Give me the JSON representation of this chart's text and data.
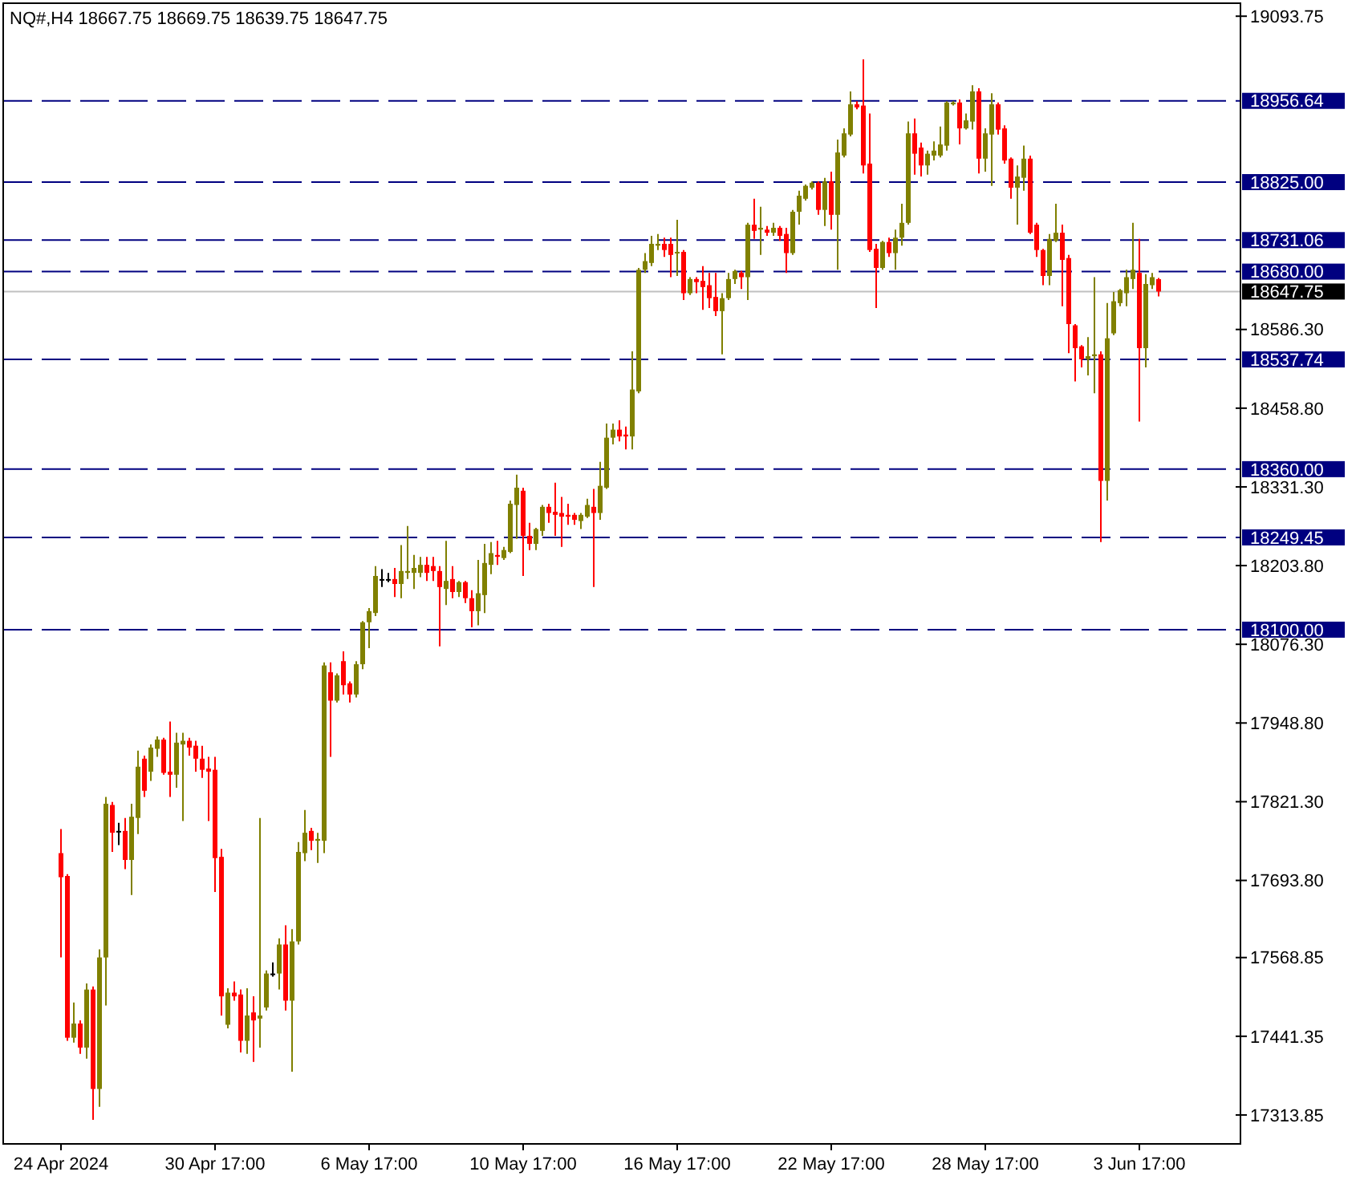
{
  "chart_data": {
    "type": "candlestick",
    "title": "NQ#,H4  18667.75 18669.75 18639.75 18647.75",
    "categories": [
      "24 Apr 2024",
      null,
      null,
      null,
      null,
      null,
      null,
      null,
      null,
      null,
      null,
      null,
      null,
      null,
      null,
      null,
      null,
      null,
      null,
      null,
      null,
      null,
      null,
      null,
      "30 Apr 17:00",
      null,
      null,
      null,
      null,
      null,
      null,
      null,
      null,
      null,
      null,
      null,
      null,
      null,
      null,
      null,
      null,
      null,
      null,
      null,
      null,
      null,
      null,
      null,
      "6 May 17:00",
      null,
      null,
      null,
      null,
      null,
      null,
      null,
      null,
      null,
      null,
      null,
      null,
      null,
      null,
      null,
      null,
      null,
      null,
      null,
      null,
      null,
      null,
      null,
      "10 May 17:00",
      null,
      null,
      null,
      null,
      null,
      null,
      null,
      null,
      null,
      null,
      null,
      null,
      null,
      null,
      null,
      null,
      null,
      null,
      null,
      null,
      null,
      null,
      null,
      "16 May 17:00",
      null,
      null,
      null,
      null,
      null,
      null,
      null,
      null,
      null,
      null,
      null,
      null,
      null,
      null,
      null,
      null,
      null,
      null,
      null,
      null,
      null,
      null,
      null,
      "22 May 17:00",
      null,
      null,
      null,
      null,
      null,
      null,
      null,
      null,
      null,
      null,
      null,
      null,
      null,
      null,
      null,
      null,
      null,
      null,
      null,
      null,
      null,
      null,
      null,
      "28 May 17:00",
      null,
      null,
      null,
      null,
      null,
      null,
      null,
      null,
      null,
      null,
      null,
      null,
      null,
      null,
      null,
      null,
      null,
      null,
      null,
      null,
      null,
      null,
      null,
      "3 Jun 17:00",
      null,
      null,
      null
    ],
    "ohlc": [
      [
        17738,
        17777,
        17569,
        17699
      ],
      [
        17701,
        17704,
        17434,
        17439
      ],
      [
        17439,
        17496,
        17431,
        17462
      ],
      [
        17462,
        17467,
        17413,
        17423
      ],
      [
        17423,
        17527,
        17405,
        17517
      ],
      [
        17517,
        17522,
        17306,
        17356
      ],
      [
        17356,
        17582,
        17327,
        17569
      ],
      [
        17569,
        17829,
        17491,
        17818
      ],
      [
        17816,
        17821,
        17740,
        17771
      ],
      [
        17774,
        17787,
        17751,
        17774
      ],
      [
        17774,
        17795,
        17712,
        17727
      ],
      [
        17727,
        17818,
        17670,
        17797
      ],
      [
        17795,
        17904,
        17769,
        17878
      ],
      [
        17891,
        17896,
        17829,
        17839
      ],
      [
        17870,
        17914,
        17855,
        17909
      ],
      [
        17907,
        17927,
        17894,
        17922
      ],
      [
        17922,
        17925,
        17865,
        17868
      ],
      [
        17870,
        17951,
        17829,
        17865
      ],
      [
        17865,
        17933,
        17844,
        17917
      ],
      [
        17914,
        17933,
        17790,
        17920
      ],
      [
        17920,
        17925,
        17896,
        17909
      ],
      [
        17912,
        17920,
        17870,
        17891
      ],
      [
        17891,
        17912,
        17860,
        17873
      ],
      [
        17875,
        17894,
        17790,
        17870
      ],
      [
        17873,
        17894,
        17675,
        17730
      ],
      [
        17732,
        17745,
        17475,
        17506
      ],
      [
        17460,
        17519,
        17454,
        17512
      ],
      [
        17512,
        17530,
        17499,
        17506
      ],
      [
        17509,
        17517,
        17415,
        17434
      ],
      [
        17434,
        17519,
        17413,
        17475
      ],
      [
        17480,
        17506,
        17400,
        17467
      ],
      [
        17470,
        17795,
        17423,
        17475
      ],
      [
        17488,
        17548,
        17483,
        17543
      ],
      [
        17543,
        17561,
        17538,
        17543
      ],
      [
        17543,
        17600,
        17517,
        17590
      ],
      [
        17590,
        17621,
        17483,
        17499
      ],
      [
        17499,
        17615,
        17384,
        17595
      ],
      [
        17595,
        17756,
        17590,
        17740
      ],
      [
        17738,
        17808,
        17725,
        17771
      ],
      [
        17774,
        17779,
        17743,
        17758
      ],
      [
        17758,
        17771,
        17722,
        17761
      ],
      [
        17758,
        18047,
        17738,
        18042
      ],
      [
        18031,
        18047,
        17894,
        17985
      ],
      [
        17985,
        18029,
        17982,
        18026
      ],
      [
        18049,
        18065,
        17995,
        18010
      ],
      [
        18013,
        18016,
        17982,
        17995
      ],
      [
        17995,
        18049,
        17990,
        18044
      ],
      [
        18044,
        18114,
        18036,
        18112
      ],
      [
        18112,
        18135,
        18070,
        18130
      ],
      [
        18127,
        18203,
        18122,
        18187
      ],
      [
        18182,
        18198,
        18169,
        18182
      ],
      [
        18182,
        18192,
        18177,
        18182
      ],
      [
        18182,
        18200,
        18153,
        18174
      ],
      [
        18174,
        18237,
        18151,
        18195
      ],
      [
        18192,
        18268,
        18182,
        18195
      ],
      [
        18192,
        18221,
        18166,
        18200
      ],
      [
        18192,
        18218,
        18185,
        18205
      ],
      [
        18205,
        18218,
        18179,
        18192
      ],
      [
        18203,
        18218,
        18179,
        18195
      ],
      [
        18195,
        18203,
        18073,
        18169
      ],
      [
        18166,
        18244,
        18140,
        18179
      ],
      [
        18182,
        18203,
        18151,
        18161
      ],
      [
        18161,
        18179,
        18153,
        18177
      ],
      [
        18177,
        18179,
        18143,
        18151
      ],
      [
        18151,
        18164,
        18104,
        18130
      ],
      [
        18130,
        18213,
        18107,
        18159
      ],
      [
        18156,
        18239,
        18127,
        18208
      ],
      [
        18205,
        18242,
        18190,
        18224
      ],
      [
        18221,
        18244,
        18205,
        18218
      ],
      [
        18216,
        18234,
        18213,
        18229
      ],
      [
        18226,
        18309,
        18224,
        18304
      ],
      [
        18302,
        18351,
        18247,
        18330
      ],
      [
        18325,
        18330,
        18187,
        18252
      ],
      [
        18252,
        18273,
        18229,
        18239
      ],
      [
        18239,
        18265,
        18229,
        18263
      ],
      [
        18260,
        18302,
        18252,
        18299
      ],
      [
        18299,
        18304,
        18273,
        18289
      ],
      [
        18291,
        18338,
        18252,
        18286
      ],
      [
        18289,
        18315,
        18234,
        18283
      ],
      [
        18286,
        18304,
        18270,
        18283
      ],
      [
        18286,
        18289,
        18270,
        18278
      ],
      [
        18276,
        18289,
        18263,
        18286
      ],
      [
        18283,
        18312,
        18281,
        18302
      ],
      [
        18299,
        18328,
        18169,
        18289
      ],
      [
        18289,
        18372,
        18278,
        18333
      ],
      [
        18330,
        18434,
        18328,
        18411
      ],
      [
        18411,
        18434,
        18400,
        18424
      ],
      [
        18424,
        18439,
        18405,
        18413
      ],
      [
        18416,
        18429,
        18392,
        18413
      ],
      [
        18413,
        18551,
        18392,
        18489
      ],
      [
        18486,
        18686,
        18483,
        18683
      ],
      [
        18683,
        18710,
        18678,
        18697
      ],
      [
        18694,
        18738,
        18689,
        18725
      ],
      [
        18722,
        18741,
        18715,
        18725
      ],
      [
        18725,
        18735,
        18704,
        18715
      ],
      [
        18725,
        18735,
        18671,
        18707
      ],
      [
        18710,
        18764,
        18673,
        18712
      ],
      [
        18712,
        18715,
        18634,
        18645
      ],
      [
        18645,
        18671,
        18642,
        18668
      ],
      [
        18668,
        18671,
        18645,
        18663
      ],
      [
        18665,
        18689,
        18618,
        18655
      ],
      [
        18658,
        18678,
        18621,
        18637
      ],
      [
        18639,
        18678,
        18608,
        18616
      ],
      [
        18616,
        18645,
        18546,
        18637
      ],
      [
        18637,
        18678,
        18634,
        18668
      ],
      [
        18668,
        18683,
        18660,
        18681
      ],
      [
        18678,
        18681,
        18652,
        18671
      ],
      [
        18671,
        18759,
        18634,
        18756
      ],
      [
        18756,
        18798,
        18733,
        18746
      ],
      [
        18748,
        18785,
        18707,
        18751
      ],
      [
        18748,
        18754,
        18738,
        18743
      ],
      [
        18743,
        18759,
        18738,
        18751
      ],
      [
        18751,
        18754,
        18730,
        18738
      ],
      [
        18741,
        18751,
        18678,
        18710
      ],
      [
        18710,
        18780,
        18707,
        18777
      ],
      [
        18777,
        18811,
        18756,
        18803
      ],
      [
        18798,
        18821,
        18795,
        18819
      ],
      [
        18816,
        18826,
        18813,
        18824
      ],
      [
        18824,
        18826,
        18772,
        18780
      ],
      [
        18780,
        18832,
        18754,
        18826
      ],
      [
        18826,
        18842,
        18748,
        18772
      ],
      [
        18772,
        18894,
        18683,
        18873
      ],
      [
        18868,
        18912,
        18865,
        18904
      ],
      [
        18902,
        18972,
        18899,
        18951
      ],
      [
        18951,
        18956,
        18943,
        18946
      ],
      [
        18949,
        19024,
        18839,
        18852
      ],
      [
        18855,
        18936,
        18712,
        18715
      ],
      [
        18717,
        18725,
        18621,
        18686
      ],
      [
        18686,
        18730,
        18683,
        18728
      ],
      [
        18728,
        18735,
        18704,
        18710
      ],
      [
        18710,
        18748,
        18683,
        18735
      ],
      [
        18735,
        18790,
        18722,
        18759
      ],
      [
        18759,
        18923,
        18756,
        18904
      ],
      [
        18904,
        18928,
        18837,
        18871
      ],
      [
        18881,
        18889,
        18834,
        18852
      ],
      [
        18852,
        18876,
        18837,
        18871
      ],
      [
        18868,
        18891,
        18860,
        18876
      ],
      [
        18868,
        18915,
        18865,
        18886
      ],
      [
        18884,
        18956,
        18876,
        18954
      ],
      [
        18951,
        18956,
        18949,
        18954
      ],
      [
        18954,
        18959,
        18886,
        18912
      ],
      [
        18912,
        18936,
        18910,
        18925
      ],
      [
        18923,
        18982,
        18910,
        18972
      ],
      [
        18972,
        18977,
        18839,
        18863
      ],
      [
        18863,
        18912,
        18842,
        18904
      ],
      [
        18902,
        18969,
        18819,
        18951
      ],
      [
        18951,
        18954,
        18902,
        18910
      ],
      [
        18912,
        18917,
        18855,
        18860
      ],
      [
        18863,
        18865,
        18798,
        18816
      ],
      [
        18816,
        18852,
        18756,
        18834
      ],
      [
        18832,
        18884,
        18811,
        18863
      ],
      [
        18863,
        18868,
        18741,
        18743
      ],
      [
        18756,
        18759,
        18704,
        18715
      ],
      [
        18715,
        18717,
        18658,
        18673
      ],
      [
        18673,
        18741,
        18658,
        18733
      ],
      [
        18730,
        18790,
        18728,
        18743
      ],
      [
        18743,
        18756,
        18624,
        18699
      ],
      [
        18702,
        18707,
        18548,
        18595
      ],
      [
        18593,
        18595,
        18502,
        18556
      ],
      [
        18559,
        18561,
        18525,
        18538
      ],
      [
        18538,
        18574,
        18512,
        18543
      ],
      [
        18543,
        18671,
        18483,
        18546
      ],
      [
        18546,
        18551,
        18242,
        18341
      ],
      [
        18341,
        18629,
        18309,
        18572
      ],
      [
        18580,
        18647,
        18577,
        18632
      ],
      [
        18629,
        18652,
        18624,
        18650
      ],
      [
        18645,
        18683,
        18624,
        18671
      ],
      [
        18668,
        18759,
        18652,
        18683
      ],
      [
        18678,
        18733,
        18437,
        18556
      ],
      [
        18556,
        18676,
        18525,
        18660
      ],
      [
        18658,
        18678,
        18652,
        18671
      ],
      [
        18667.75,
        18669.75,
        18639.75,
        18647.75
      ]
    ],
    "colors": [
      "#ff0000",
      "#ff0000",
      "#808000",
      "#ff0000",
      "#808000",
      "#ff0000",
      "#808000",
      "#808000",
      "#ff0000",
      "#000000",
      "#ff0000",
      "#808000",
      "#808000",
      "#ff0000",
      "#808000",
      "#808000",
      "#ff0000",
      "#ff0000",
      "#808000",
      "#808000",
      "#ff0000",
      "#ff0000",
      "#ff0000",
      "#ff0000",
      "#ff0000",
      "#ff0000",
      "#808000",
      "#ff0000",
      "#ff0000",
      "#808000",
      "#ff0000",
      "#808000",
      "#808000",
      "#000000",
      "#808000",
      "#ff0000",
      "#808000",
      "#808000",
      "#808000",
      "#ff0000",
      "#808000",
      "#808000",
      "#ff0000",
      "#808000",
      "#ff0000",
      "#ff0000",
      "#808000",
      "#808000",
      "#808000",
      "#808000",
      "#000000",
      "#000000",
      "#ff0000",
      "#808000",
      "#808000",
      "#808000",
      "#808000",
      "#ff0000",
      "#ff0000",
      "#ff0000",
      "#808000",
      "#ff0000",
      "#808000",
      "#ff0000",
      "#ff0000",
      "#808000",
      "#808000",
      "#808000",
      "#ff0000",
      "#808000",
      "#808000",
      "#808000",
      "#ff0000",
      "#ff0000",
      "#808000",
      "#808000",
      "#ff0000",
      "#ff0000",
      "#ff0000",
      "#ff0000",
      "#ff0000",
      "#808000",
      "#808000",
      "#ff0000",
      "#808000",
      "#808000",
      "#808000",
      "#ff0000",
      "#ff0000",
      "#808000",
      "#808000",
      "#808000",
      "#808000",
      "#808000",
      "#ff0000",
      "#ff0000",
      "#808000",
      "#ff0000",
      "#808000",
      "#ff0000",
      "#ff0000",
      "#ff0000",
      "#ff0000",
      "#808000",
      "#808000",
      "#808000",
      "#ff0000",
      "#808000",
      "#ff0000",
      "#808000",
      "#ff0000",
      "#808000",
      "#ff0000",
      "#ff0000",
      "#808000",
      "#808000",
      "#808000",
      "#808000",
      "#ff0000",
      "#808000",
      "#ff0000",
      "#808000",
      "#808000",
      "#808000",
      "#ff0000",
      "#ff0000",
      "#ff0000",
      "#ff0000",
      "#808000",
      "#ff0000",
      "#808000",
      "#808000",
      "#808000",
      "#ff0000",
      "#ff0000",
      "#808000",
      "#808000",
      "#808000",
      "#808000",
      "#808000",
      "#ff0000",
      "#808000",
      "#808000",
      "#ff0000",
      "#808000",
      "#808000",
      "#ff0000",
      "#ff0000",
      "#ff0000",
      "#808000",
      "#808000",
      "#ff0000",
      "#ff0000",
      "#ff0000",
      "#808000",
      "#808000",
      "#ff0000",
      "#ff0000",
      "#ff0000",
      "#ff0000",
      "#808000",
      "#808000",
      "#ff0000",
      "#808000",
      "#808000",
      "#808000",
      "#808000",
      "#808000",
      "#ff0000",
      "#808000",
      "#808000",
      "#ff0000"
    ],
    "ylim": [
      17267,
      19120
    ],
    "yticks": [
      19093.75,
      {
        "value": 18586.3,
        "label": "18586.30"
      },
      {
        "value": 18458.8,
        "label": "18458.80"
      },
      {
        "value": 18331.3,
        "label": "18331.30"
      },
      {
        "value": 18203.8,
        "label": "18203.80"
      },
      {
        "value": 18076.3,
        "label": "18076.30"
      },
      {
        "value": 17948.8,
        "label": "17948.80"
      },
      {
        "value": 17821.3,
        "label": "17821.30"
      },
      {
        "value": 17693.8,
        "label": "17693.80"
      },
      17568.85,
      17441.35,
      17313.85
    ],
    "ref_lines": [
      {
        "axis": "y",
        "value": 18956.64,
        "label": "18956.64",
        "color": "#000080",
        "line_style": "dashed"
      },
      {
        "axis": "y",
        "value": 18825.0,
        "label": "18825.00",
        "color": "#000080",
        "line_style": "dashed"
      },
      {
        "axis": "y",
        "value": 18731.06,
        "label": "18731.06",
        "color": "#000080",
        "line_style": "dashed"
      },
      {
        "axis": "y",
        "value": 18680.0,
        "label": "18680.00",
        "color": "#000080",
        "line_style": "dashed"
      },
      {
        "axis": "y",
        "value": 18537.74,
        "label": "18537.74",
        "color": "#000080",
        "line_style": "dashed"
      },
      {
        "axis": "y",
        "value": 18360.0,
        "label": "18360.00",
        "color": "#000080",
        "line_style": "dashed"
      },
      {
        "axis": "y",
        "value": 18249.45,
        "label": "18249.45",
        "color": "#000080",
        "line_style": "dashed"
      },
      {
        "axis": "y",
        "value": 18100.0,
        "label": "18100.00",
        "color": "#000080",
        "line_style": "dashed"
      },
      {
        "axis": "y",
        "value": 18647.75,
        "label": "18647.75",
        "color": "#c0c0c0",
        "line_style": "solid"
      }
    ]
  }
}
